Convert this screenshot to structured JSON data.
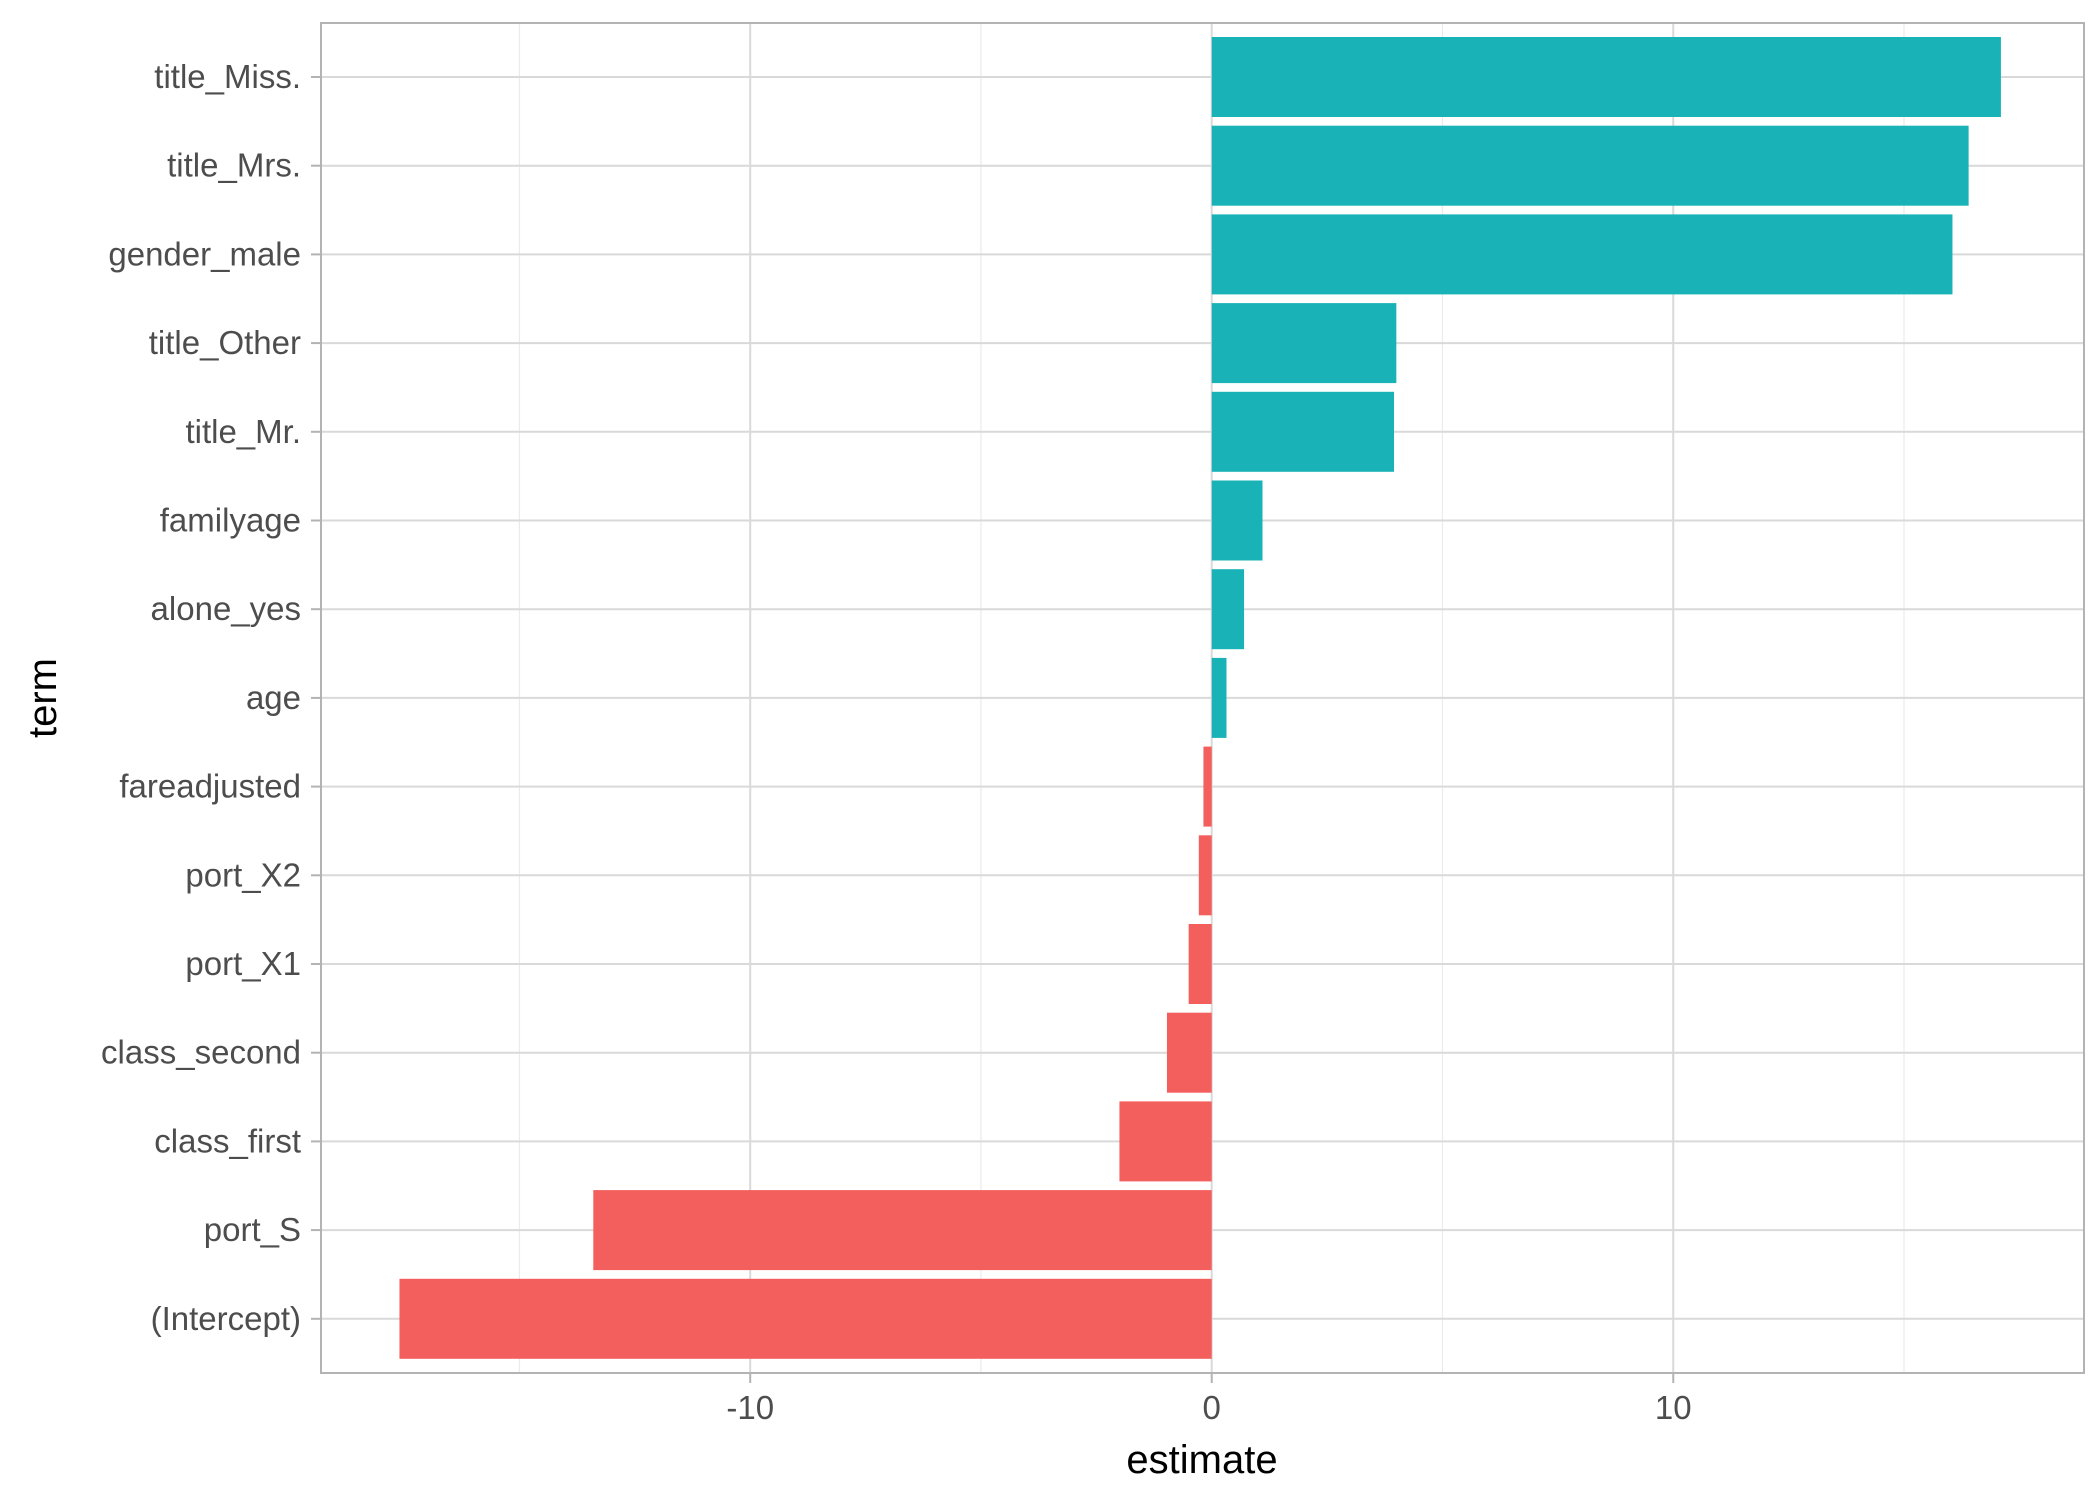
{
  "chart_data": {
    "type": "bar",
    "orientation": "horizontal",
    "xlabel": "estimate",
    "ylabel": "term",
    "xlim": [
      -19.3,
      18.9
    ],
    "x_ticks": [
      -10,
      0,
      10
    ],
    "x_tick_labels": [
      "-10",
      "0",
      "10"
    ],
    "grid": true,
    "legend": "none",
    "colors": {
      "positive": "#19B3B7",
      "negative": "#F25F5C"
    },
    "categories": [
      "title_Miss.",
      "title_Mrs.",
      "gender_male",
      "title_Other",
      "title_Mr.",
      "familyage",
      "alone_yes",
      "age",
      "fareadjusted",
      "port_X2",
      "port_X1",
      "class_second",
      "class_first",
      "port_S",
      "(Intercept)"
    ],
    "values": [
      17.1,
      16.4,
      16.05,
      4.0,
      3.95,
      1.1,
      0.7,
      0.32,
      -0.18,
      -0.28,
      -0.5,
      -0.97,
      -2.0,
      -13.4,
      -17.6
    ]
  }
}
